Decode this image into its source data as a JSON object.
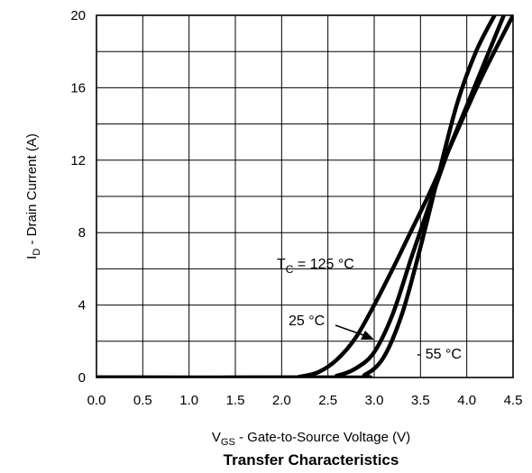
{
  "chart_data": {
    "type": "line",
    "title": "Transfer Characteristics",
    "xlabel": "V",
    "xlabel_sub": "GS",
    "xlabel_rest": " - Gate-to-Source Voltage (V)",
    "ylabel": "I",
    "ylabel_sub": "D",
    "ylabel_rest": " - Drain Current (A)",
    "xlim": [
      0,
      4.5
    ],
    "ylim": [
      0,
      20
    ],
    "xticks": [
      "0.0",
      "0.5",
      "1.0",
      "1.5",
      "2.0",
      "2.5",
      "3.0",
      "3.5",
      "4.0",
      "4.5"
    ],
    "yticks": [
      "0",
      "4",
      "8",
      "12",
      "16",
      "20"
    ],
    "grid": true,
    "series": [
      {
        "name": "TC = 125 °C",
        "x": [
          0,
          2.0,
          2.2,
          2.4,
          2.6,
          2.8,
          3.0,
          3.2,
          3.4,
          3.6,
          3.8,
          4.0,
          4.2,
          4.5
        ],
        "y": [
          0,
          0,
          0.05,
          0.3,
          1.0,
          2.2,
          4.0,
          6.0,
          8.1,
          10.2,
          12.5,
          14.8,
          17.0,
          20.0
        ]
      },
      {
        "name": "25 °C",
        "x": [
          0,
          2.4,
          2.6,
          2.8,
          3.0,
          3.2,
          3.4,
          3.6,
          3.8,
          4.0,
          4.2,
          4.4
        ],
        "y": [
          0,
          0,
          0.1,
          0.5,
          1.4,
          3.5,
          6.6,
          9.6,
          12.5,
          15.0,
          17.5,
          20.0
        ]
      },
      {
        "name": "- 55 °C",
        "x": [
          0,
          2.7,
          2.9,
          3.1,
          3.3,
          3.5,
          3.7,
          3.9,
          4.1,
          4.3
        ],
        "y": [
          0,
          0,
          0.15,
          1.1,
          3.5,
          7.2,
          11.3,
          15.2,
          18.0,
          20.0
        ]
      }
    ],
    "annotations": {
      "t125_main": "T",
      "t125_sub": "C",
      "t125_rest": " = 125 °C",
      "t25": "25 °C",
      "t55": "- 55 °C"
    }
  }
}
